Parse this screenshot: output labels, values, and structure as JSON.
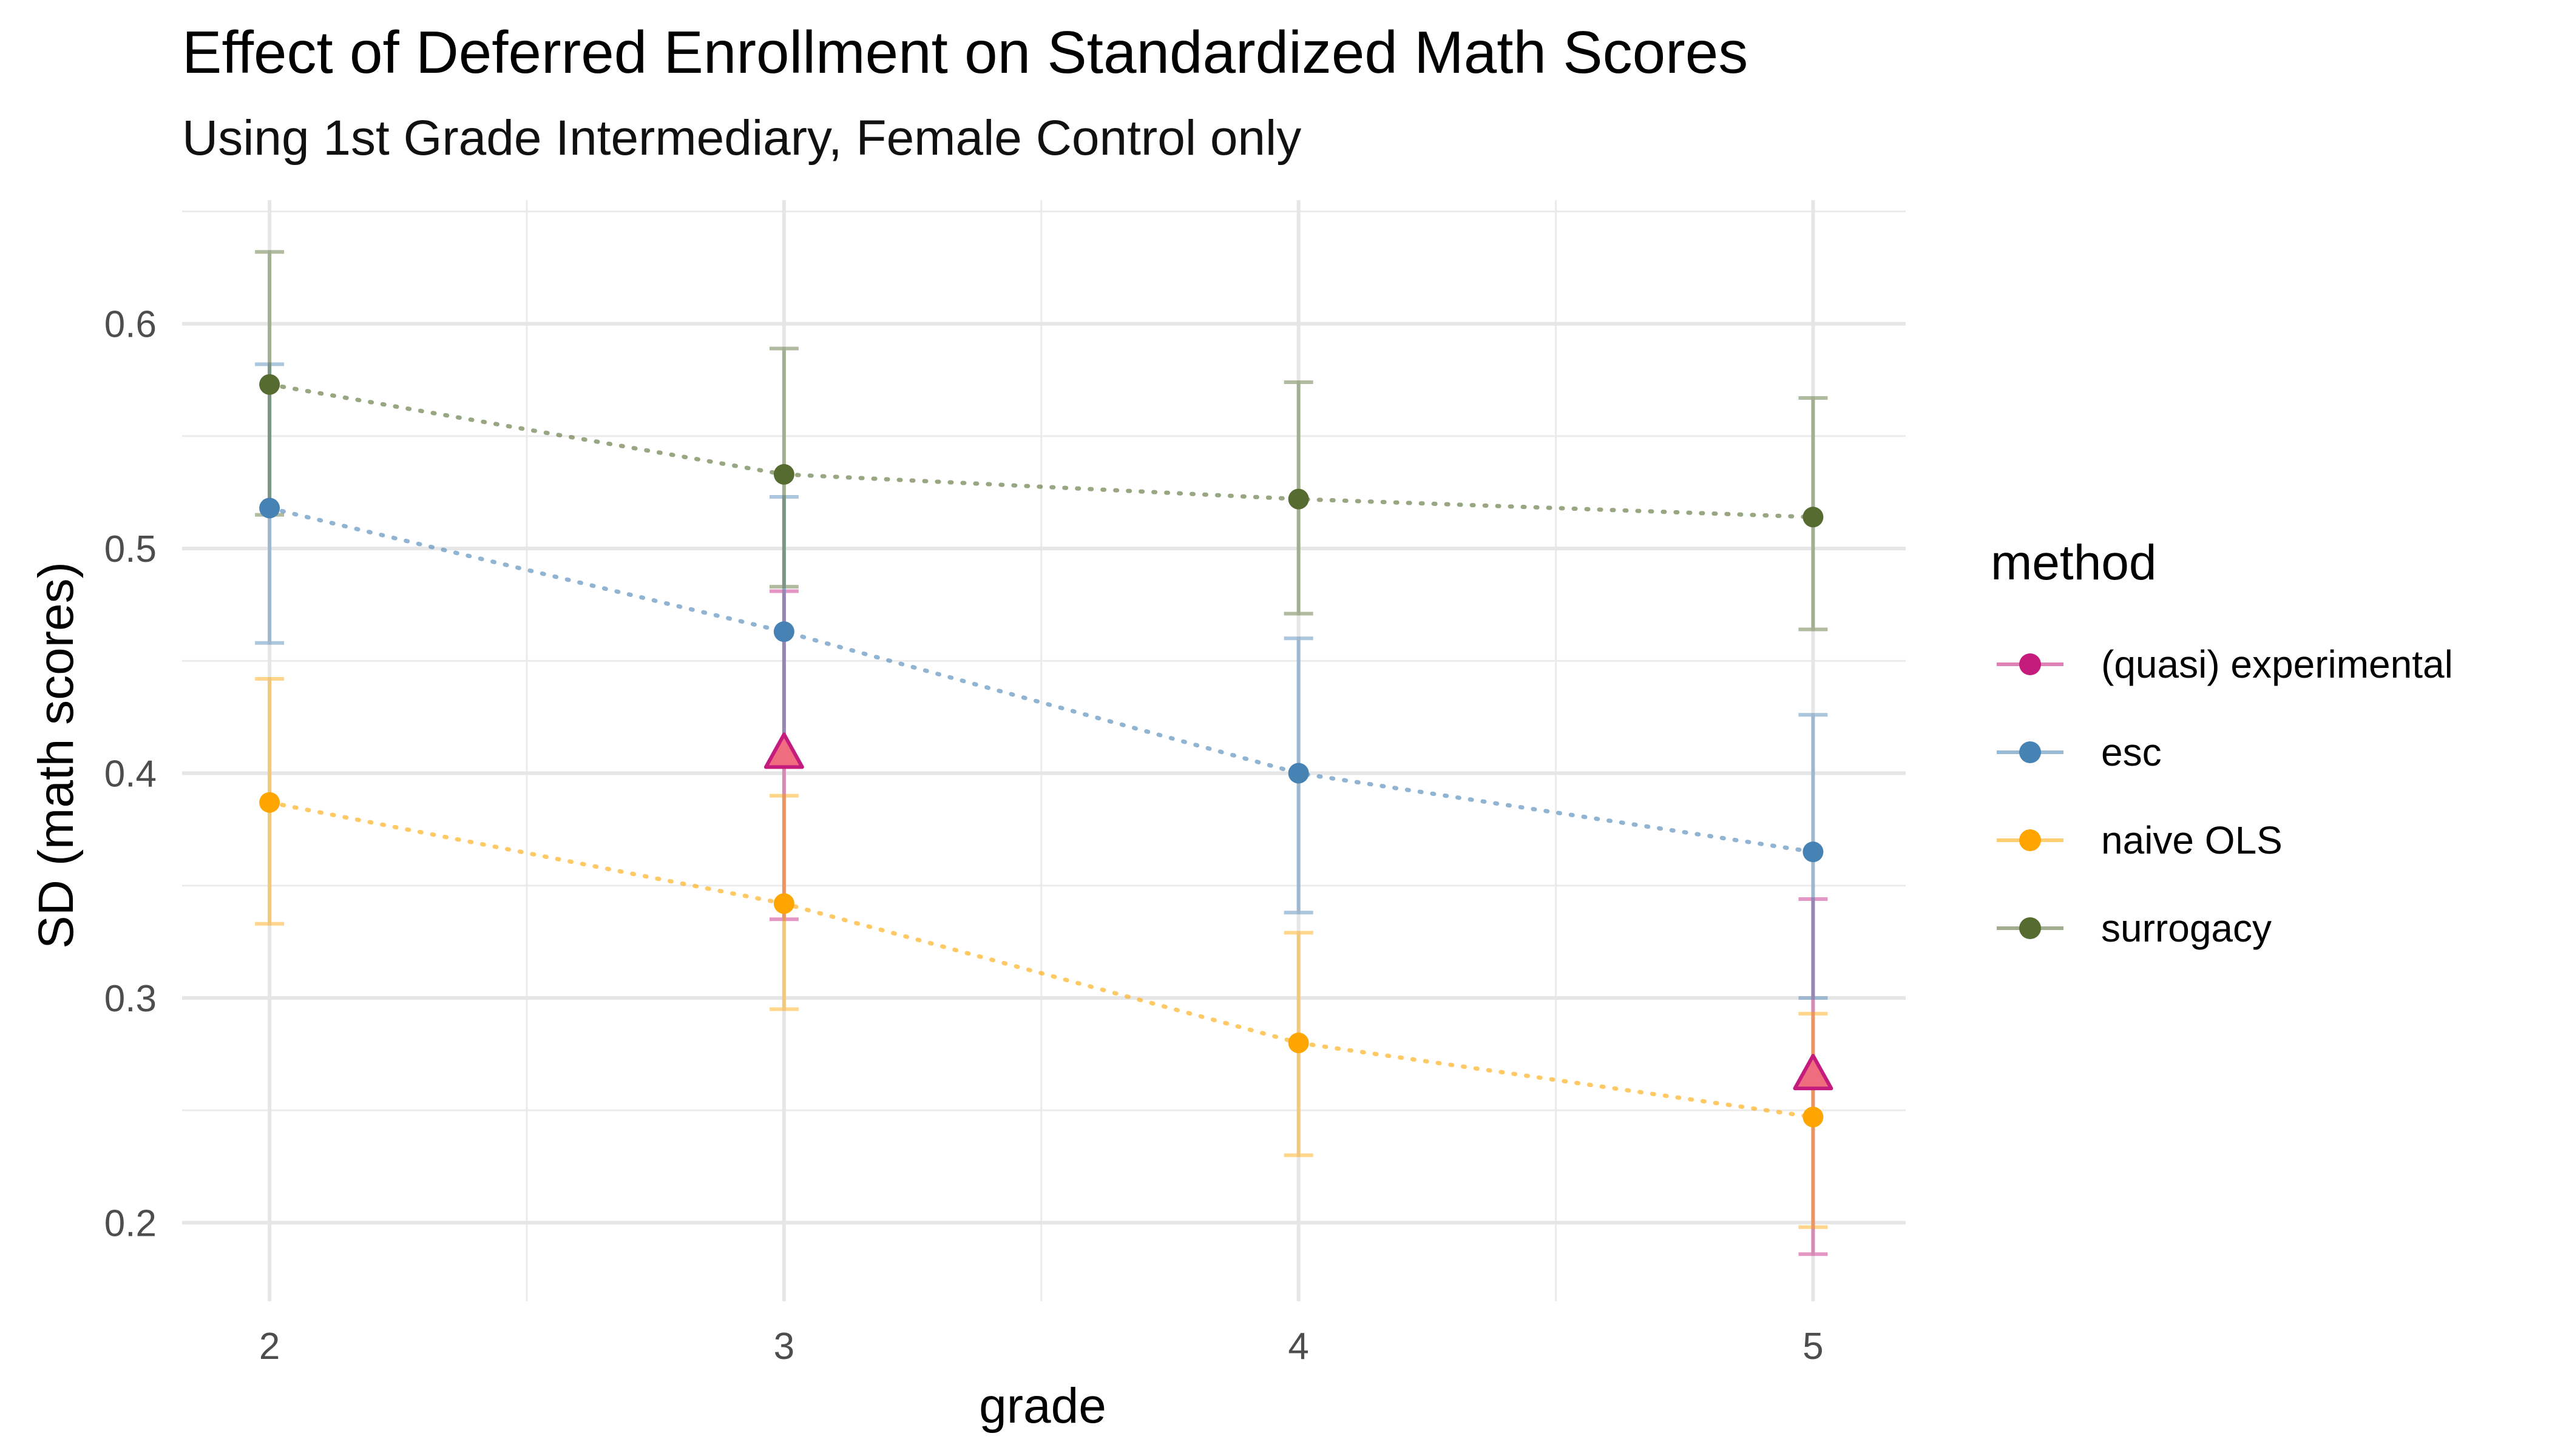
{
  "chart_data": {
    "type": "line",
    "title": "Effect of Deferred Enrollment on Standardized Math Scores",
    "subtitle": "Using 1st Grade Intermediary, Female Control only",
    "xlabel": "grade",
    "ylabel": "SD (math scores)",
    "x": [
      2,
      3,
      4,
      5
    ],
    "xlim": [
      1.83,
      5.18
    ],
    "ylim": [
      0.165,
      0.655
    ],
    "x_ticks": [
      "2",
      "3",
      "4",
      "5"
    ],
    "y_ticks": [
      "0.2",
      "0.3",
      "0.4",
      "0.5",
      "0.6"
    ],
    "grid": true,
    "legend": {
      "title": "method",
      "placement": "right",
      "entries": [
        "(quasi) experimental",
        "esc",
        "naive OLS",
        "surrogacy"
      ]
    },
    "series": [
      {
        "name": "(quasi) experimental",
        "color": "#c51b7d",
        "marker": "triangle",
        "line": "none",
        "points": [
          {
            "x": 3,
            "y": 0.408,
            "lo": 0.335,
            "hi": 0.481
          },
          {
            "x": 5,
            "y": 0.265,
            "lo": 0.186,
            "hi": 0.344
          }
        ]
      },
      {
        "name": "esc",
        "color": "#4682b4",
        "marker": "circle",
        "line": "dotted",
        "points": [
          {
            "x": 2,
            "y": 0.518,
            "lo": 0.458,
            "hi": 0.582
          },
          {
            "x": 3,
            "y": 0.463,
            "lo": 0.403,
            "hi": 0.523
          },
          {
            "x": 4,
            "y": 0.4,
            "lo": 0.338,
            "hi": 0.46
          },
          {
            "x": 5,
            "y": 0.365,
            "lo": 0.3,
            "hi": 0.426
          }
        ]
      },
      {
        "name": "naive OLS",
        "color": "#ffa500",
        "marker": "circle",
        "line": "dotted",
        "points": [
          {
            "x": 2,
            "y": 0.387,
            "lo": 0.333,
            "hi": 0.442
          },
          {
            "x": 3,
            "y": 0.342,
            "lo": 0.295,
            "hi": 0.39
          },
          {
            "x": 4,
            "y": 0.28,
            "lo": 0.23,
            "hi": 0.329
          },
          {
            "x": 5,
            "y": 0.247,
            "lo": 0.198,
            "hi": 0.293
          }
        ]
      },
      {
        "name": "surrogacy",
        "color": "#556b2f",
        "marker": "circle",
        "line": "dotted",
        "points": [
          {
            "x": 2,
            "y": 0.573,
            "lo": 0.515,
            "hi": 0.632
          },
          {
            "x": 3,
            "y": 0.533,
            "lo": 0.483,
            "hi": 0.589
          },
          {
            "x": 4,
            "y": 0.522,
            "lo": 0.471,
            "hi": 0.574
          },
          {
            "x": 5,
            "y": 0.514,
            "lo": 0.464,
            "hi": 0.567
          }
        ]
      }
    ]
  }
}
